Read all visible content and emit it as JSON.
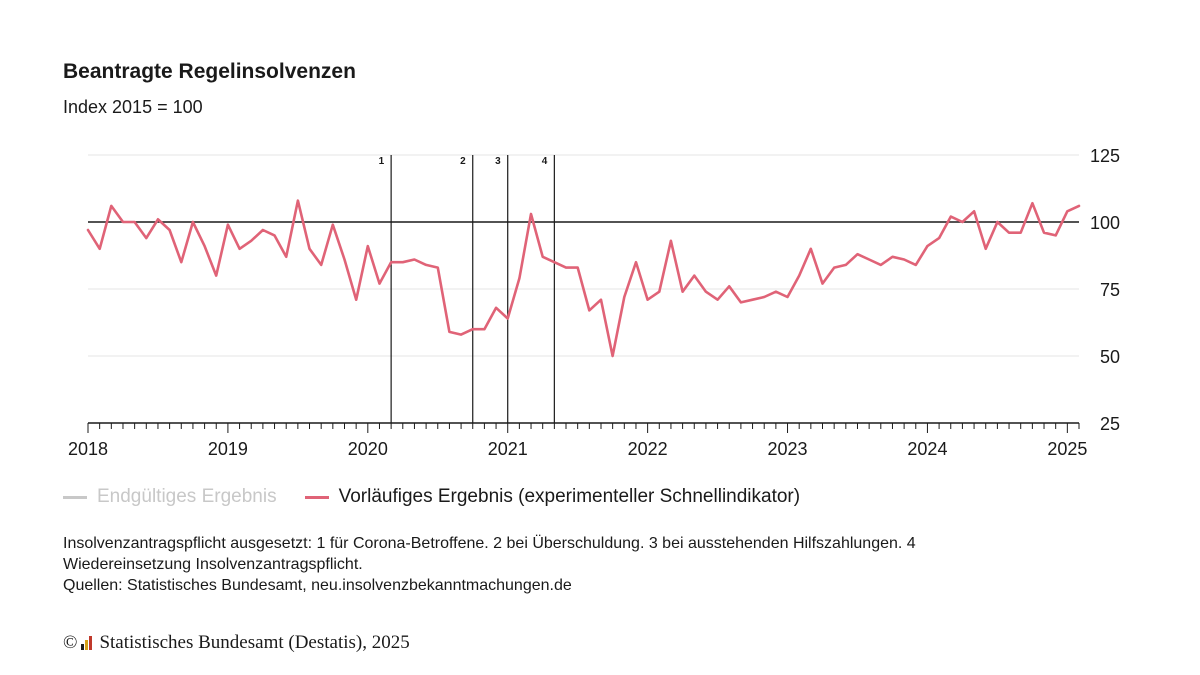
{
  "header": {
    "title": "Beantragte Regelinsolvenzen",
    "subtitle": "Index 2015 = 100"
  },
  "legend": {
    "final_label": "Endgültiges Ergebnis",
    "preliminary_label": "Vorläufiges Ergebnis (experimenteller Schnellindikator)"
  },
  "notes": {
    "line1": "Insolvenzantragspflicht ausgesetzt: 1 für Corona-Betroffene. 2 bei Überschuldung. 3 bei ausstehenden Hilfszahlungen. 4",
    "line2": "Wiedereinsetzung Insolvenzantragspflicht.",
    "line3": "Quellen: Statistisches Bundesamt, neu.insolvenzbekanntmachungen.de"
  },
  "footer": {
    "copyright_symbol": "©",
    "text": "Statistisches Bundesamt (Destatis), 2025"
  },
  "colors": {
    "series": "#e06377",
    "final_series": "#c8c8c8",
    "axis": "#1a1a1a",
    "grid": "#e6e6e6"
  },
  "chart_data": {
    "type": "line",
    "title": "Beantragte Regelinsolvenzen",
    "subtitle": "Index 2015 = 100",
    "x_unit": "month",
    "start": "2018-01",
    "xlim": [
      "2018-01",
      "2025-02"
    ],
    "ylim": [
      25,
      125
    ],
    "yticks": [
      25,
      50,
      75,
      100,
      125
    ],
    "xticks": [
      "2018",
      "2019",
      "2020",
      "2021",
      "2022",
      "2023",
      "2024",
      "2025"
    ],
    "reference_line": 100,
    "grid": true,
    "legend_position": "bottom",
    "series": [
      {
        "name": "Vorläufiges Ergebnis (experimenteller Schnellindikator)",
        "values": [
          97,
          90,
          106,
          100,
          100,
          94,
          101,
          97,
          85,
          100,
          91,
          80,
          99,
          90,
          93,
          97,
          95,
          87,
          108,
          90,
          84,
          99,
          86,
          71,
          91,
          77,
          85,
          85,
          86,
          84,
          83,
          59,
          58,
          60,
          60,
          68,
          64,
          79,
          103,
          87,
          85,
          83,
          83,
          67,
          71,
          50,
          72,
          85,
          71,
          74,
          93,
          74,
          80,
          74,
          71,
          76,
          70,
          71,
          72,
          74,
          72,
          80,
          90,
          77,
          83,
          84,
          88,
          86,
          84,
          87,
          86,
          84,
          91,
          94,
          102,
          100,
          104,
          90,
          100,
          96,
          96,
          107,
          96,
          95,
          104,
          106
        ]
      }
    ],
    "markers": [
      {
        "label": "1",
        "date": "2020-03"
      },
      {
        "label": "2",
        "date": "2020-10"
      },
      {
        "label": "3",
        "date": "2021-01"
      },
      {
        "label": "4",
        "date": "2021-05"
      }
    ]
  }
}
